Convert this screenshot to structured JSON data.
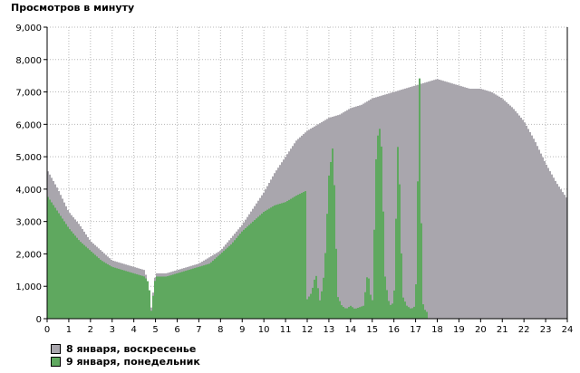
{
  "chart_data": {
    "type": "bar",
    "title": "Просмотров в минуту",
    "xlabel": "",
    "ylabel": "",
    "xlim": [
      0,
      24
    ],
    "ylim": [
      0,
      9000
    ],
    "x_ticks": [
      "0",
      "1",
      "2",
      "3",
      "4",
      "5",
      "6",
      "7",
      "8",
      "9",
      "10",
      "11",
      "12",
      "13",
      "14",
      "15",
      "16",
      "17",
      "18",
      "19",
      "20",
      "21",
      "22",
      "23",
      "24"
    ],
    "y_ticks": [
      "0",
      "1,000",
      "2,000",
      "3,000",
      "4,000",
      "5,000",
      "6,000",
      "7,000",
      "8,000",
      "9,000"
    ],
    "y_tick_values": [
      0,
      1000,
      2000,
      3000,
      4000,
      5000,
      6000,
      7000,
      8000,
      9000
    ],
    "grid": true,
    "legend_position": "bottom-left",
    "series": [
      {
        "name": "8 января, воскресенье",
        "color": "#a9a6ad",
        "x": [
          0,
          0.5,
          1,
          1.5,
          2,
          2.5,
          3,
          3.5,
          4,
          4.5,
          4.7,
          4.8,
          5,
          5.5,
          6,
          6.5,
          7,
          7.5,
          8,
          8.5,
          9,
          9.5,
          10,
          10.5,
          11,
          11.5,
          12,
          12.5,
          13,
          13.5,
          14,
          14.5,
          15,
          15.5,
          16,
          16.5,
          17,
          17.5,
          18,
          18.5,
          19,
          19.5,
          20,
          20.5,
          21,
          21.5,
          22,
          22.5,
          23,
          23.5,
          24
        ],
        "values": [
          4600,
          4000,
          3300,
          2900,
          2400,
          2100,
          1800,
          1700,
          1600,
          1500,
          1000,
          300,
          1400,
          1400,
          1500,
          1600,
          1700,
          1900,
          2100,
          2500,
          2900,
          3400,
          3900,
          4500,
          5000,
          5500,
          5800,
          6000,
          6200,
          6300,
          6500,
          6600,
          6800,
          6900,
          7000,
          7100,
          7200,
          7300,
          7400,
          7300,
          7200,
          7100,
          7100,
          7000,
          6800,
          6500,
          6100,
          5500,
          4800,
          4200,
          3700
        ]
      },
      {
        "name": "9 января, понедельник",
        "color": "#5fa85f",
        "x": [
          0,
          0.5,
          1,
          1.5,
          2,
          2.5,
          3,
          3.5,
          4,
          4.5,
          4.7,
          4.8,
          5,
          5.5,
          6,
          6.5,
          7,
          7.5,
          8,
          8.5,
          9,
          9.5,
          10,
          10.5,
          11,
          11.5,
          11.95,
          12,
          12.2,
          12.4,
          12.6,
          12.8,
          13,
          13.2,
          13.4,
          13.6,
          13.8,
          14,
          14.2,
          14.4,
          14.6,
          14.8,
          15,
          15.2,
          15.4,
          15.6,
          15.8,
          16,
          16.2,
          16.4,
          16.6,
          16.8,
          17,
          17.2,
          17.3,
          17.4,
          17.6
        ],
        "values": [
          3800,
          3300,
          2800,
          2400,
          2100,
          1800,
          1600,
          1500,
          1400,
          1300,
          1100,
          200,
          1300,
          1300,
          1400,
          1500,
          1600,
          1700,
          2000,
          2300,
          2700,
          3000,
          3300,
          3500,
          3600,
          3800,
          3950,
          600,
          800,
          1400,
          500,
          1500,
          4400,
          5400,
          700,
          400,
          300,
          400,
          300,
          350,
          400,
          1500,
          300,
          5500,
          6000,
          1200,
          400,
          500,
          5800,
          700,
          400,
          300,
          400,
          8000,
          600,
          300,
          150
        ]
      }
    ]
  }
}
